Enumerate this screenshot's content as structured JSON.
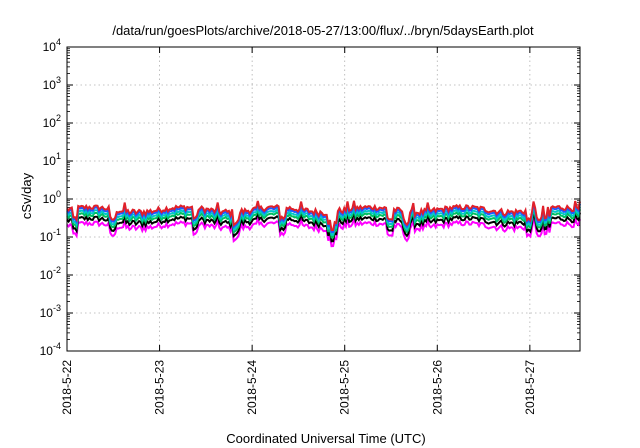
{
  "chart_data": {
    "type": "line",
    "title": "/data/run/goesPlots/archive/2018-05-27/13:00/flux/../bryn/5daysEarth.plot",
    "xlabel": "Coordinated Universal Time (UTC)",
    "ylabel": "cSv/day",
    "y_scale": "log",
    "ylim": [
      0.0001,
      10000
    ],
    "xlim": [
      "2018-05-22 00:00",
      "2018-05-27 13:00"
    ],
    "grid": true,
    "y_ticks": [
      {
        "base": "10",
        "exp": "-4"
      },
      {
        "base": "10",
        "exp": "-3"
      },
      {
        "base": "10",
        "exp": "-2"
      },
      {
        "base": "10",
        "exp": "-1"
      },
      {
        "base": "10",
        "exp": "0"
      },
      {
        "base": "10",
        "exp": "1"
      },
      {
        "base": "10",
        "exp": "2"
      },
      {
        "base": "10",
        "exp": "3"
      },
      {
        "base": "10",
        "exp": "4"
      }
    ],
    "x_ticks": [
      "2018-5-22",
      "2018-5-23",
      "2018-5-24",
      "2018-5-25",
      "2018-5-26",
      "2018-5-27"
    ],
    "series": [
      {
        "color": "#ff00ff",
        "base": 0.2,
        "spike": 0.06
      },
      {
        "color": "#000000",
        "base": 0.27,
        "spike": 0.12
      },
      {
        "color": "#00c060",
        "base": 0.34,
        "spike": 0.14
      },
      {
        "color": "#00c8c8",
        "base": 0.4,
        "spike": 0.16
      },
      {
        "color": "#1e5aff",
        "base": 0.47,
        "spike": 0.2
      },
      {
        "color": "#e0202a",
        "base": 0.53,
        "spike": 0.24
      }
    ]
  }
}
